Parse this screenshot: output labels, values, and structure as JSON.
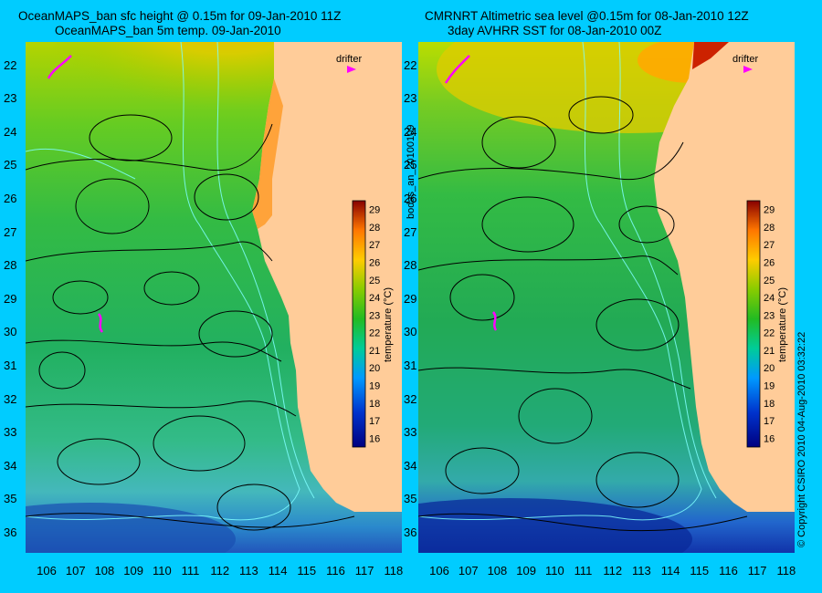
{
  "left_panel": {
    "title_line1": "OceanMAPS_ban sfc height @ 0.15m for 09-Jan-2010 11Z",
    "title_line2": "OceanMAPS_ban 5m temp. 09-Jan-2010",
    "drifter_label": "drifter",
    "vertical_label": "bodas_an_20100109"
  },
  "right_panel": {
    "title_line1": "CMRNRT Altimetric sea level  @0.15m  for 08-Jan-2010 12Z",
    "title_line2": "3day AVHRR SST for 08-Jan-2010 00Z",
    "drifter_label": "drifter",
    "vertical_label": "© Copyright CSIRO 2010   04-Aug-2010 03:32:22"
  },
  "colorbar": {
    "label": "temperature (°C)",
    "ticks": [
      "16",
      "17",
      "18",
      "19",
      "20",
      "21",
      "22",
      "23",
      "24",
      "25",
      "26",
      "27",
      "28",
      "29"
    ],
    "min": 15.5,
    "max": 29.5
  },
  "axes": {
    "lat_ticks": [
      "22",
      "23",
      "24",
      "25",
      "26",
      "27",
      "28",
      "29",
      "30",
      "31",
      "32",
      "33",
      "34",
      "35",
      "36"
    ],
    "lon_ticks": [
      "106",
      "107",
      "108",
      "109",
      "110",
      "111",
      "112",
      "113",
      "114",
      "115",
      "116",
      "117",
      "118"
    ],
    "lat_range": [
      21.3,
      36.6
    ],
    "lon_range": [
      105.3,
      118.3
    ]
  },
  "colors": {
    "background": "#00ccff",
    "land": "#ffcc99",
    "contour": "#000000",
    "bathymetry": "#7fffff",
    "drifter": "#ff00ff"
  }
}
